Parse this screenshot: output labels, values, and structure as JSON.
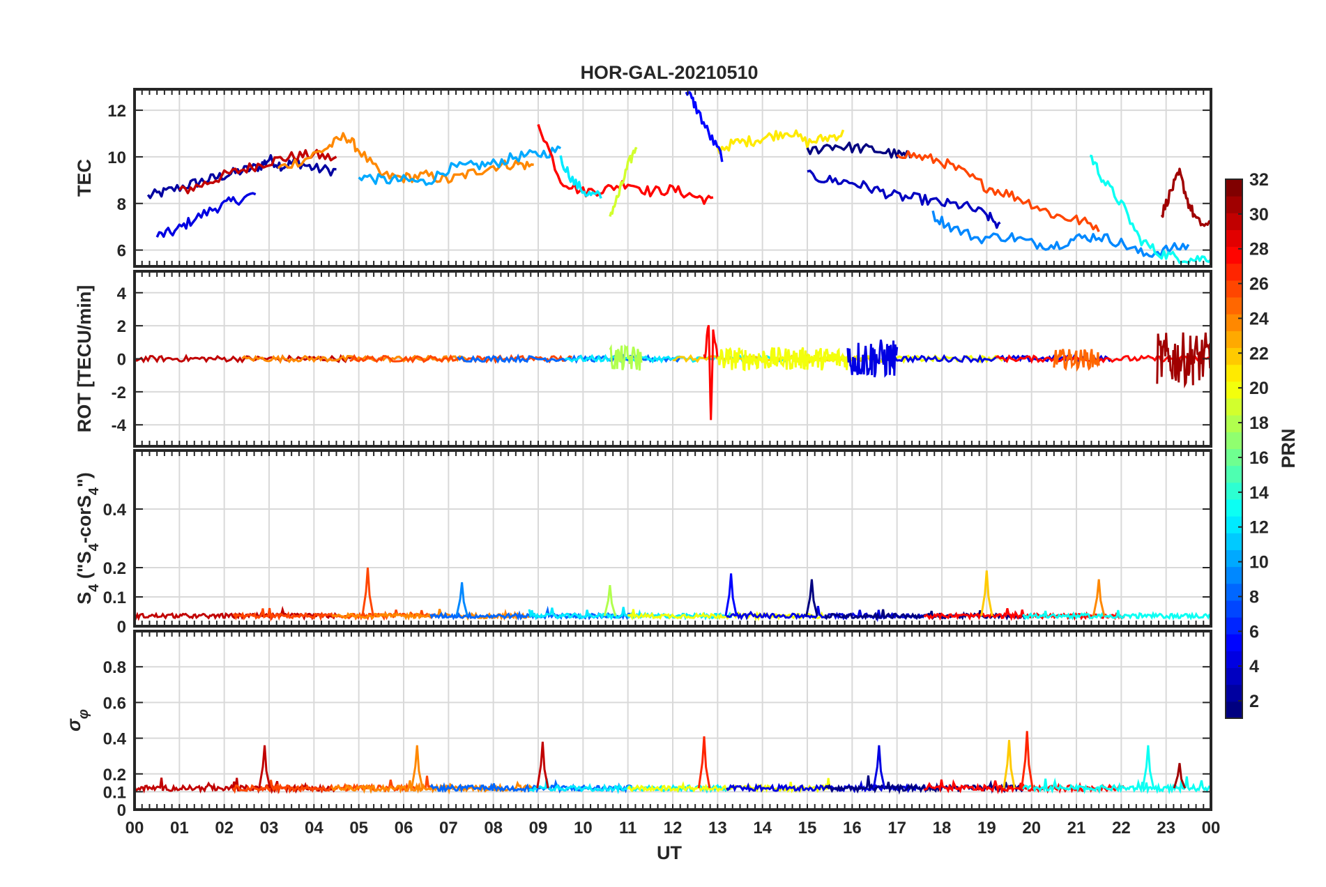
{
  "chart_data": {
    "type": "line",
    "title": "HOR-GAL-20210510",
    "xlabel": "UT",
    "x_range_hours": [
      0,
      24
    ],
    "x_tick_labels": [
      "00",
      "01",
      "02",
      "03",
      "04",
      "05",
      "06",
      "07",
      "08",
      "09",
      "10",
      "11",
      "12",
      "13",
      "14",
      "15",
      "16",
      "17",
      "18",
      "19",
      "20",
      "21",
      "22",
      "23",
      "00"
    ],
    "colorbar": {
      "label": "PRN",
      "range": [
        1,
        32
      ],
      "ticks": [
        "2",
        "4",
        "6",
        "8",
        "10",
        "12",
        "14",
        "16",
        "18",
        "20",
        "22",
        "24",
        "26",
        "28",
        "30",
        "32"
      ],
      "colormap": "jet"
    },
    "panels": [
      {
        "id": "tec",
        "ylabel": "TEC",
        "ylim": [
          5.3,
          12.9
        ],
        "yticks": [
          "6",
          "8",
          "10",
          "12"
        ],
        "series": [
          {
            "name": "PRN 2",
            "prn": 2,
            "x": [
              0.3,
              0.7,
              1.2,
              1.6,
              2.0,
              2.4,
              2.8,
              3.0,
              3.3,
              3.6,
              4.0,
              4.5
            ],
            "y": [
              8.3,
              8.5,
              8.8,
              9.0,
              9.2,
              9.4,
              9.6,
              9.9,
              9.6,
              9.8,
              9.5,
              9.4
            ]
          },
          {
            "name": "PRN 4",
            "prn": 4,
            "x": [
              0.5,
              0.9,
              1.3,
              1.8,
              2.2,
              2.7
            ],
            "y": [
              6.6,
              6.8,
              7.3,
              7.8,
              8.1,
              8.4
            ]
          },
          {
            "name": "PRN 30",
            "prn": 30,
            "x": [
              1.0,
              1.5,
              2.0,
              2.5,
              3.0,
              3.5,
              4.0,
              4.5
            ],
            "y": [
              8.5,
              8.8,
              9.2,
              9.5,
              9.8,
              10.0,
              10.1,
              9.9
            ]
          },
          {
            "name": "PRN 24",
            "prn": 24,
            "x": [
              3.2,
              3.8,
              4.3,
              4.7,
              5.0,
              5.5,
              6.0,
              6.5,
              7.0,
              7.5,
              8.0,
              8.5,
              8.9
            ],
            "y": [
              9.5,
              9.9,
              10.4,
              10.9,
              10.3,
              9.2,
              9.1,
              9.2,
              9.0,
              9.3,
              9.6,
              9.7,
              9.6
            ]
          },
          {
            "name": "PRN 10",
            "prn": 10,
            "x": [
              5.0,
              5.5,
              6.0,
              6.5,
              7.0,
              7.5,
              8.0,
              8.5,
              9.0,
              9.5
            ],
            "y": [
              9.2,
              9.0,
              9.0,
              8.9,
              9.5,
              9.6,
              9.7,
              10.0,
              10.1,
              10.3
            ]
          },
          {
            "name": "PRN 28",
            "prn": 28,
            "x": [
              9.0,
              9.5,
              10.0,
              10.5,
              11.0,
              11.5,
              12.0,
              12.5,
              12.9
            ],
            "y": [
              11.5,
              9.0,
              8.5,
              8.6,
              8.9,
              8.5,
              8.6,
              8.3,
              8.1
            ]
          },
          {
            "name": "PRN 19",
            "prn": 19,
            "x": [
              10.6,
              10.8,
              11.0,
              11.2
            ],
            "y": [
              7.5,
              8.4,
              9.6,
              10.5
            ]
          },
          {
            "name": "PRN 12",
            "prn": 12,
            "x": [
              9.5,
              9.8,
              10.1,
              10.4
            ],
            "y": [
              9.9,
              8.9,
              8.4,
              8.3
            ]
          },
          {
            "name": "PRN 21",
            "prn": 21,
            "x": [
              13.0,
              13.4,
              13.8,
              14.2,
              14.6,
              15.0,
              15.4,
              15.8
            ],
            "y": [
              10.3,
              10.6,
              10.7,
              10.9,
              11.1,
              10.6,
              10.8,
              11.0
            ]
          },
          {
            "name": "PRN 5",
            "prn": 5,
            "x": [
              12.3,
              12.5,
              12.8,
              13.1
            ],
            "y": [
              12.9,
              12.2,
              11.0,
              10.0
            ]
          },
          {
            "name": "PRN 3",
            "prn": 3,
            "x": [
              15.0,
              15.5,
              16.0,
              16.5,
              17.0,
              17.5,
              18.0,
              18.5,
              19.0,
              19.3
            ],
            "y": [
              9.2,
              9.0,
              8.9,
              8.6,
              8.3,
              8.2,
              8.0,
              7.9,
              7.5,
              7.0
            ]
          },
          {
            "name": "PRN 1",
            "prn": 1,
            "x": [
              15.0,
              15.5,
              16.0,
              16.5,
              17.0,
              17.3
            ],
            "y": [
              10.2,
              10.5,
              10.4,
              10.3,
              10.1,
              10.0
            ]
          },
          {
            "name": "PRN 26",
            "prn": 26,
            "x": [
              17.0,
              17.5,
              18.0,
              18.5,
              19.0,
              19.5,
              20.0,
              20.5,
              21.0,
              21.5
            ],
            "y": [
              10.2,
              10.0,
              9.8,
              9.3,
              8.7,
              8.4,
              8.0,
              7.5,
              7.3,
              7.0
            ]
          },
          {
            "name": "PRN 9",
            "prn": 9,
            "x": [
              17.8,
              18.2,
              18.8,
              19.5,
              20.0,
              20.5,
              21.0,
              21.5,
              22.0,
              22.5,
              23.0,
              23.5
            ],
            "y": [
              7.5,
              7.0,
              6.5,
              6.6,
              6.3,
              6.2,
              6.5,
              6.6,
              6.3,
              5.8,
              6.0,
              6.2
            ]
          },
          {
            "name": "PRN 13",
            "prn": 13,
            "x": [
              21.3,
              21.6,
              22.0,
              22.4,
              22.8,
              23.2,
              23.6,
              24.0
            ],
            "y": [
              10.1,
              9.0,
              8.0,
              6.5,
              5.9,
              5.7,
              5.6,
              5.7
            ]
          },
          {
            "name": "PRN 31",
            "prn": 31,
            "x": [
              22.9,
              23.1,
              23.3,
              23.5,
              23.7,
              24.0
            ],
            "y": [
              7.5,
              8.5,
              9.3,
              8.0,
              7.2,
              7.0
            ]
          }
        ]
      },
      {
        "id": "rot",
        "ylabel": "ROT [TECU/min]",
        "ylim": [
          -5.3,
          5.3
        ],
        "yticks": [
          "-4",
          "-2",
          "0",
          "2",
          "4"
        ],
        "series": [
          {
            "name": "PRN 28",
            "prn": 28,
            "x": [
              12.7,
              12.8,
              12.85,
              12.9,
              13.0
            ],
            "y": [
              0.0,
              2.0,
              -3.5,
              1.5,
              0.0
            ],
            "noise": 0.4
          },
          {
            "name": "PRN 20",
            "prn": 20,
            "x": [
              13.0,
              14.0,
              15.0,
              15.9
            ],
            "y": [
              0,
              0,
              0,
              0
            ],
            "noise": 0.7
          },
          {
            "name": "PRN 4",
            "prn": 4,
            "x": [
              15.9,
              16.5,
              17.0
            ],
            "y": [
              0,
              0,
              0
            ],
            "noise": 1.2
          },
          {
            "name": "PRN 31",
            "prn": 31,
            "x": [
              22.8,
              23.2,
              23.6,
              24.0
            ],
            "y": [
              0,
              0,
              0,
              0
            ],
            "noise": 1.6
          },
          {
            "name": "PRN 25",
            "prn": 25,
            "x": [
              20.5,
              21.0,
              21.5
            ],
            "y": [
              0,
              0,
              0
            ],
            "noise": 0.6
          },
          {
            "name": "PRN 18",
            "prn": 18,
            "x": [
              10.6,
              11.3
            ],
            "y": [
              0,
              0
            ],
            "noise": 0.8
          }
        ]
      },
      {
        "id": "s4",
        "ylabel": "S4 (\"S4-corS4\")",
        "ylabel_main": "S",
        "ylabel_sub": "4",
        "ylabel_rest": " (\"S",
        "ylabel_sub2": "4",
        "ylabel_rest2": "-corS",
        "ylabel_sub3": "4",
        "ylabel_end": "\")",
        "ylim": [
          0,
          0.6
        ],
        "yticks": [
          "0",
          "0.1",
          "0.2",
          "0.4"
        ],
        "ytick_values": [
          0,
          0.1,
          0.2,
          0.4
        ],
        "peaks": [
          {
            "prn": 26,
            "x": 5.2,
            "y": 0.2
          },
          {
            "prn": 22,
            "x": 19.0,
            "y": 0.19
          },
          {
            "prn": 5,
            "x": 13.3,
            "y": 0.18
          },
          {
            "prn": 24,
            "x": 21.5,
            "y": 0.16
          },
          {
            "prn": 9,
            "x": 7.3,
            "y": 0.15
          },
          {
            "prn": 18,
            "x": 10.6,
            "y": 0.14
          },
          {
            "prn": 1,
            "x": 15.1,
            "y": 0.16
          }
        ]
      },
      {
        "id": "sigma",
        "ylabel": "σφ",
        "ylabel_main": "σ",
        "ylabel_sub": "φ",
        "ylim": [
          0,
          1.0
        ],
        "yticks": [
          "0",
          "0.1",
          "0.2",
          "0.4",
          "0.6",
          "0.8"
        ],
        "ytick_values": [
          0,
          0.1,
          0.2,
          0.4,
          0.6,
          0.8
        ],
        "peaks": [
          {
            "prn": 30,
            "x": 2.9,
            "y": 0.36
          },
          {
            "prn": 24,
            "x": 6.3,
            "y": 0.36
          },
          {
            "prn": 30,
            "x": 9.1,
            "y": 0.38
          },
          {
            "prn": 27,
            "x": 12.7,
            "y": 0.41
          },
          {
            "prn": 4,
            "x": 16.6,
            "y": 0.36
          },
          {
            "prn": 22,
            "x": 19.5,
            "y": 0.39
          },
          {
            "prn": 27,
            "x": 19.9,
            "y": 0.44
          },
          {
            "prn": 13,
            "x": 22.6,
            "y": 0.36
          },
          {
            "prn": 31,
            "x": 23.3,
            "y": 0.26
          }
        ]
      }
    ]
  }
}
